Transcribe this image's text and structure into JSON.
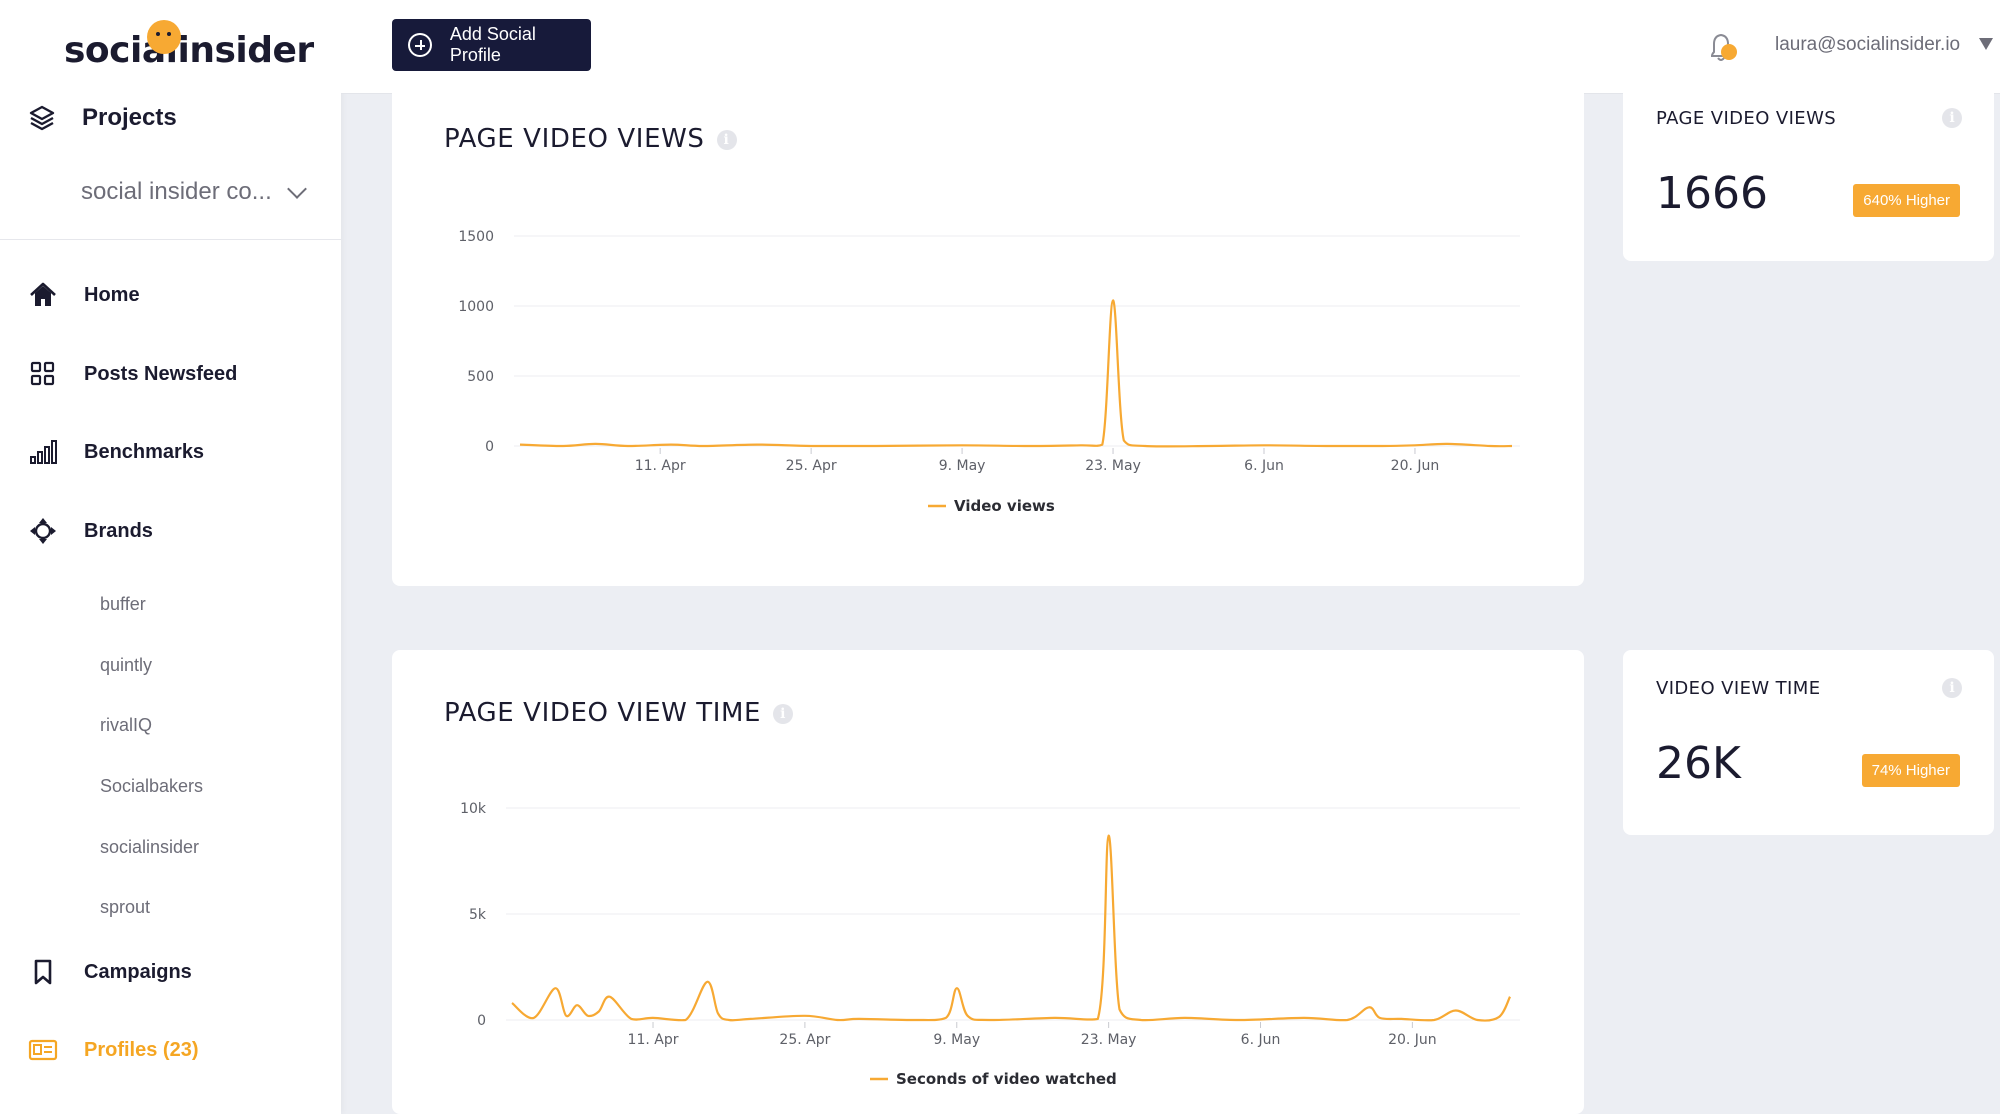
{
  "app": {
    "logo_text": "socialinsider"
  },
  "sidebar": {
    "projects_label": "Projects",
    "project_select": "social insider co...",
    "nav": {
      "home": "Home",
      "posts_newsfeed": "Posts Newsfeed",
      "benchmarks": "Benchmarks",
      "brands": "Brands",
      "campaigns": "Campaigns",
      "profiles": "Profiles (23)"
    },
    "brands": [
      "buffer",
      "quintly",
      "rivalIQ",
      "Socialbakers",
      "socialinsider",
      "sprout"
    ]
  },
  "header": {
    "add_button": "Add Social Profile",
    "user_email": "laura@socialinsider.io"
  },
  "colors": {
    "accent": "#f7a933",
    "dark": "#171a3a",
    "background": "#eceef3"
  },
  "cards": {
    "views_title": "PAGE VIDEO VIEWS",
    "views_info": "i",
    "time_title": "PAGE VIDEO VIEW TIME",
    "time_info": "i"
  },
  "stats": [
    {
      "title": "PAGE VIDEO VIEWS",
      "value": "1666",
      "badge": "640% Higher",
      "info": "i"
    },
    {
      "title": "VIDEO VIEW TIME",
      "value": "26K",
      "badge": "74% Higher",
      "info": "i"
    }
  ],
  "chart_data": [
    {
      "type": "line",
      "title": "PAGE VIDEO VIEWS",
      "x_start": "2019-03-29",
      "x_end": "2019-06-29",
      "x_ticks": [
        "11. Apr",
        "25. Apr",
        "9. May",
        "23. May",
        "6. Jun",
        "20. Jun"
      ],
      "y_ticks": [
        "0",
        "500",
        "1000",
        "1500"
      ],
      "ylim": [
        0,
        1500
      ],
      "grid": true,
      "legend_position": "bottom",
      "series": [
        {
          "name": "Video views",
          "color": "#f7a933",
          "x": [
            "2019-03-29",
            "2019-04-02",
            "2019-04-05",
            "2019-04-08",
            "2019-04-12",
            "2019-04-15",
            "2019-04-20",
            "2019-04-25",
            "2019-05-01",
            "2019-05-09",
            "2019-05-15",
            "2019-05-20",
            "2019-05-22",
            "2019-05-23",
            "2019-05-24",
            "2019-05-26",
            "2019-06-01",
            "2019-06-06",
            "2019-06-12",
            "2019-06-17",
            "2019-06-20",
            "2019-06-23",
            "2019-06-27",
            "2019-06-29"
          ],
          "y": [
            10,
            0,
            15,
            0,
            10,
            0,
            10,
            0,
            0,
            5,
            0,
            5,
            10,
            1040,
            40,
            0,
            0,
            5,
            0,
            0,
            5,
            15,
            0,
            0
          ]
        }
      ]
    },
    {
      "type": "line",
      "title": "PAGE VIDEO VIEW TIME",
      "x_start": "2019-03-29",
      "x_end": "2019-06-29",
      "x_ticks": [
        "11. Apr",
        "25. Apr",
        "9. May",
        "23. May",
        "6. Jun",
        "20. Jun"
      ],
      "y_ticks": [
        "0",
        "5k",
        "10k"
      ],
      "ylim": [
        0,
        10000
      ],
      "grid": true,
      "legend_position": "bottom",
      "series": [
        {
          "name": "Seconds of video watched",
          "color": "#f7a933",
          "x": [
            "2019-03-29",
            "2019-03-31",
            "2019-04-02",
            "2019-04-03",
            "2019-04-04",
            "2019-04-05",
            "2019-04-06",
            "2019-04-07",
            "2019-04-09",
            "2019-04-11",
            "2019-04-14",
            "2019-04-16",
            "2019-04-17",
            "2019-04-18",
            "2019-04-20",
            "2019-04-25",
            "2019-04-28",
            "2019-04-30",
            "2019-05-05",
            "2019-05-08",
            "2019-05-09",
            "2019-05-10",
            "2019-05-12",
            "2019-05-18",
            "2019-05-22",
            "2019-05-23",
            "2019-05-24",
            "2019-05-26",
            "2019-05-30",
            "2019-06-04",
            "2019-06-10",
            "2019-06-14",
            "2019-06-16",
            "2019-06-17",
            "2019-06-19",
            "2019-06-22",
            "2019-06-24",
            "2019-06-26",
            "2019-06-28",
            "2019-06-29"
          ],
          "y": [
            800,
            100,
            1500,
            200,
            700,
            200,
            400,
            1100,
            50,
            100,
            0,
            1800,
            300,
            0,
            50,
            200,
            0,
            50,
            0,
            100,
            1500,
            200,
            0,
            100,
            50,
            8700,
            500,
            0,
            100,
            0,
            100,
            0,
            600,
            100,
            50,
            0,
            450,
            0,
            150,
            1100
          ]
        }
      ]
    }
  ]
}
